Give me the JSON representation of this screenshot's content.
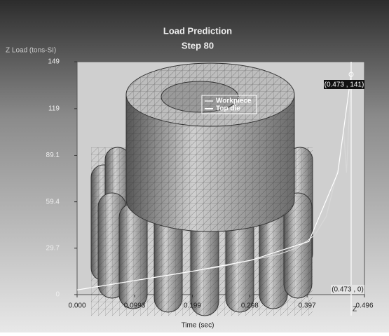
{
  "chart_data": {
    "type": "line",
    "title": "Load Prediction",
    "subtitle": "Step 80",
    "y_label": "Z Load (tons-SI)",
    "x_label": "Time (sec)",
    "xlim": [
      0,
      0.496
    ],
    "ylim": [
      0,
      149
    ],
    "xticks": [
      {
        "value": 0,
        "label": "0.000"
      },
      0.0993,
      0.199,
      0.298,
      0.397,
      0.496
    ],
    "yticks": [
      0,
      29.7,
      59.4,
      89.1,
      119,
      149
    ],
    "series": [
      {
        "name": "Workpiece",
        "color": "#d8d8d8",
        "x": [
          0,
          0.05,
          0.1,
          0.15,
          0.2,
          0.25,
          0.3,
          0.35,
          0.38,
          0.41,
          0.43,
          0.45,
          0.46,
          0.465,
          0.47,
          0.473
        ],
        "values": [
          3,
          6,
          9,
          12,
          15,
          18,
          22,
          26,
          30,
          38,
          50,
          80,
          105,
          78,
          118,
          141
        ]
      },
      {
        "name": "Top die",
        "color": "#ffffff",
        "x": [
          0,
          0.1,
          0.2,
          0.3,
          0.4,
          0.45,
          0.473
        ],
        "values": [
          3,
          9,
          15,
          22,
          34,
          78,
          141
        ]
      }
    ],
    "cursor_x": 0.473,
    "annotations": [
      "(0.473 , 141)",
      "(0.473 , 0)",
      "Z"
    ]
  }
}
